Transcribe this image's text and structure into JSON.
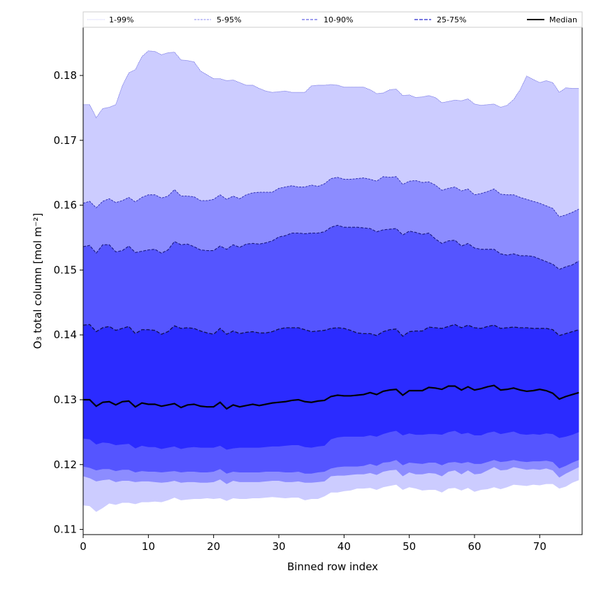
{
  "chart_data": {
    "type": "area",
    "title": "",
    "xlabel": "Binned row index",
    "ylabel": "O₃ total column [mol m⁻²]",
    "xlim": [
      0,
      76
    ],
    "ylim": [
      0.109,
      0.1875
    ],
    "x_ticks": [
      0,
      10,
      20,
      30,
      40,
      50,
      60,
      70
    ],
    "x_tick_labels": [
      "0",
      "10",
      "20",
      "30",
      "40",
      "50",
      "60",
      "70"
    ],
    "y_ticks": [
      0.11,
      0.12,
      0.13,
      0.14,
      0.15,
      0.16,
      0.17,
      0.18
    ],
    "y_tick_labels": [
      "0.11",
      "0.12",
      "0.13",
      "0.14",
      "0.15",
      "0.16",
      "0.17",
      "0.18"
    ],
    "grid": false,
    "legend_position": "top",
    "legend": [
      {
        "label": "1-99%",
        "color": "#c8c8f8",
        "style": "dotted"
      },
      {
        "label": "5-95%",
        "color": "#8888f0",
        "style": "dashed"
      },
      {
        "label": "10-90%",
        "color": "#6666e6",
        "style": "dashed"
      },
      {
        "label": "25-75%",
        "color": "#4a4ad6",
        "style": "dashed"
      },
      {
        "label": "Median",
        "color": "#000000",
        "style": "solid"
      }
    ],
    "band_colors": {
      "p1_99": "#ccccff",
      "p5_95": "#8c8cff",
      "p10_90": "#5555ff",
      "p25_75": "#2b2bff"
    },
    "edge_colors": {
      "p99": "#4d4dd9",
      "p95": "#2b2bb0",
      "p90": "#1a1a80",
      "p75": "#10104a"
    },
    "x": [
      0,
      1,
      2,
      3,
      4,
      5,
      6,
      7,
      8,
      9,
      10,
      11,
      12,
      13,
      14,
      15,
      16,
      17,
      18,
      19,
      20,
      21,
      22,
      23,
      24,
      25,
      26,
      27,
      28,
      29,
      30,
      31,
      32,
      33,
      34,
      35,
      36,
      37,
      38,
      39,
      40,
      41,
      42,
      43,
      44,
      45,
      46,
      47,
      48,
      49,
      50,
      51,
      52,
      53,
      54,
      55,
      56,
      57,
      58,
      59,
      60,
      61,
      62,
      63,
      64,
      65,
      66,
      67,
      68,
      69,
      70,
      71,
      72,
      73,
      74,
      75,
      76
    ],
    "series": [
      {
        "name": "p99",
        "values": [
          0.1755,
          0.1755,
          0.1735,
          0.1749,
          0.1751,
          0.1755,
          0.1784,
          0.1804,
          0.1809,
          0.1829,
          0.1838,
          0.1837,
          0.1832,
          0.1835,
          0.1836,
          0.1824,
          0.1823,
          0.1821,
          0.1807,
          0.1801,
          0.1795,
          0.1795,
          0.1792,
          0.1793,
          0.1789,
          0.1785,
          0.1785,
          0.178,
          0.1776,
          0.1774,
          0.1775,
          0.1776,
          0.1774,
          0.1774,
          0.1774,
          0.1784,
          0.1785,
          0.1785,
          0.1786,
          0.1785,
          0.1782,
          0.1782,
          0.1782,
          0.1782,
          0.1778,
          0.1772,
          0.1773,
          0.1778,
          0.1779,
          0.1769,
          0.177,
          0.1766,
          0.1767,
          0.1769,
          0.1766,
          0.1758,
          0.176,
          0.1762,
          0.1761,
          0.1764,
          0.1756,
          0.1754,
          0.1755,
          0.1756,
          0.1751,
          0.1754,
          0.1763,
          0.1778,
          0.1799,
          0.1794,
          0.1789,
          0.1792,
          0.1789,
          0.1774,
          0.1781,
          0.178,
          0.178
        ]
      },
      {
        "name": "p95",
        "values": [
          0.1603,
          0.1606,
          0.1596,
          0.1606,
          0.161,
          0.1604,
          0.1607,
          0.1612,
          0.1605,
          0.1612,
          0.1616,
          0.1616,
          0.1611,
          0.1614,
          0.1624,
          0.1614,
          0.1614,
          0.1613,
          0.1607,
          0.1607,
          0.1609,
          0.1616,
          0.1609,
          0.1614,
          0.161,
          0.1616,
          0.1619,
          0.162,
          0.162,
          0.162,
          0.1626,
          0.1628,
          0.163,
          0.1628,
          0.1628,
          0.1631,
          0.1629,
          0.1633,
          0.1641,
          0.1643,
          0.164,
          0.164,
          0.1641,
          0.1642,
          0.164,
          0.1637,
          0.1644,
          0.1643,
          0.1644,
          0.1632,
          0.1637,
          0.1638,
          0.1635,
          0.1636,
          0.1631,
          0.1623,
          0.1626,
          0.1628,
          0.1622,
          0.1625,
          0.1616,
          0.1618,
          0.1621,
          0.1625,
          0.1617,
          0.1616,
          0.1616,
          0.1612,
          0.1609,
          0.1606,
          0.1603,
          0.1599,
          0.1595,
          0.1582,
          0.1585,
          0.1589,
          0.1594
        ]
      },
      {
        "name": "p90",
        "values": [
          0.1536,
          0.1538,
          0.1526,
          0.1539,
          0.1539,
          0.1528,
          0.153,
          0.1537,
          0.1527,
          0.1529,
          0.1531,
          0.1532,
          0.1526,
          0.1531,
          0.1544,
          0.1539,
          0.154,
          0.1536,
          0.1531,
          0.153,
          0.153,
          0.1537,
          0.1532,
          0.1539,
          0.1535,
          0.154,
          0.1541,
          0.154,
          0.1542,
          0.1545,
          0.1551,
          0.1553,
          0.1557,
          0.1557,
          0.1556,
          0.1557,
          0.1557,
          0.1559,
          0.1566,
          0.1569,
          0.1566,
          0.1566,
          0.1566,
          0.1565,
          0.1564,
          0.1559,
          0.1562,
          0.1563,
          0.1564,
          0.1554,
          0.156,
          0.1558,
          0.1555,
          0.1557,
          0.1548,
          0.1541,
          0.1545,
          0.1546,
          0.1537,
          0.1541,
          0.1534,
          0.1532,
          0.1532,
          0.1532,
          0.1525,
          0.1523,
          0.1525,
          0.1522,
          0.1522,
          0.1521,
          0.1517,
          0.1513,
          0.1509,
          0.1501,
          0.1505,
          0.1508,
          0.1514
        ]
      },
      {
        "name": "p75",
        "values": [
          0.1415,
          0.1416,
          0.1405,
          0.1411,
          0.1413,
          0.1407,
          0.141,
          0.1413,
          0.1402,
          0.1408,
          0.1408,
          0.1407,
          0.1401,
          0.1405,
          0.1414,
          0.141,
          0.1411,
          0.141,
          0.1406,
          0.1403,
          0.1401,
          0.141,
          0.1401,
          0.1406,
          0.1402,
          0.1404,
          0.1405,
          0.1403,
          0.1403,
          0.1405,
          0.1409,
          0.1411,
          0.1411,
          0.1411,
          0.1408,
          0.1405,
          0.1406,
          0.1407,
          0.141,
          0.1411,
          0.141,
          0.1407,
          0.1403,
          0.1402,
          0.1402,
          0.1399,
          0.1405,
          0.1408,
          0.1409,
          0.1398,
          0.1405,
          0.1406,
          0.1406,
          0.1412,
          0.1411,
          0.141,
          0.1413,
          0.1416,
          0.1411,
          0.1415,
          0.1411,
          0.141,
          0.1413,
          0.1415,
          0.141,
          0.1411,
          0.1412,
          0.1411,
          0.1411,
          0.141,
          0.141,
          0.141,
          0.1408,
          0.1399,
          0.1402,
          0.1405,
          0.1408
        ]
      },
      {
        "name": "Median",
        "values": [
          0.13,
          0.13,
          0.129,
          0.1296,
          0.1297,
          0.1292,
          0.1297,
          0.1298,
          0.1289,
          0.1295,
          0.1293,
          0.1293,
          0.129,
          0.1292,
          0.1294,
          0.1288,
          0.1292,
          0.1293,
          0.129,
          0.1289,
          0.1289,
          0.1296,
          0.1286,
          0.1292,
          0.1289,
          0.1291,
          0.1293,
          0.1291,
          0.1293,
          0.1295,
          0.1296,
          0.1297,
          0.1299,
          0.13,
          0.1297,
          0.1296,
          0.1298,
          0.1299,
          0.1305,
          0.1307,
          0.1306,
          0.1306,
          0.1307,
          0.1308,
          0.1311,
          0.1308,
          0.1313,
          0.1315,
          0.1316,
          0.1307,
          0.1314,
          0.1314,
          0.1314,
          0.1319,
          0.1318,
          0.1316,
          0.1321,
          0.1321,
          0.1315,
          0.132,
          0.1315,
          0.1317,
          0.132,
          0.1322,
          0.1315,
          0.1316,
          0.1318,
          0.1315,
          0.1313,
          0.1314,
          0.1316,
          0.1314,
          0.131,
          0.1301,
          0.1305,
          0.1308,
          0.1311
        ]
      },
      {
        "name": "p25",
        "values": [
          0.124,
          0.1239,
          0.1231,
          0.1234,
          0.1233,
          0.123,
          0.1231,
          0.1232,
          0.1225,
          0.1229,
          0.1227,
          0.1227,
          0.1224,
          0.1226,
          0.1228,
          0.1224,
          0.1226,
          0.1227,
          0.1226,
          0.1226,
          0.1226,
          0.1229,
          0.1223,
          0.1225,
          0.1226,
          0.1226,
          0.1226,
          0.1226,
          0.1227,
          0.1228,
          0.1228,
          0.1229,
          0.123,
          0.123,
          0.1227,
          0.1226,
          0.1228,
          0.1229,
          0.1239,
          0.1242,
          0.1243,
          0.1243,
          0.1243,
          0.1243,
          0.1245,
          0.1243,
          0.1247,
          0.125,
          0.1252,
          0.1245,
          0.1248,
          0.1246,
          0.1246,
          0.1247,
          0.1247,
          0.1246,
          0.125,
          0.1252,
          0.1247,
          0.1249,
          0.1245,
          0.1245,
          0.1249,
          0.1251,
          0.1247,
          0.1249,
          0.1251,
          0.1247,
          0.1246,
          0.1247,
          0.1246,
          0.1248,
          0.1247,
          0.1241,
          0.1243,
          0.1246,
          0.125
        ]
      },
      {
        "name": "p10",
        "values": [
          0.1197,
          0.1195,
          0.1191,
          0.1193,
          0.1193,
          0.119,
          0.1192,
          0.1192,
          0.1188,
          0.119,
          0.1189,
          0.1189,
          0.1188,
          0.1189,
          0.119,
          0.1188,
          0.1189,
          0.1189,
          0.1188,
          0.1188,
          0.1189,
          0.1193,
          0.1186,
          0.1189,
          0.1188,
          0.1188,
          0.1188,
          0.1188,
          0.1189,
          0.1189,
          0.1189,
          0.1188,
          0.1188,
          0.1189,
          0.1186,
          0.1186,
          0.1188,
          0.1189,
          0.1194,
          0.1196,
          0.1197,
          0.1197,
          0.1197,
          0.1198,
          0.1201,
          0.1198,
          0.1203,
          0.1204,
          0.1207,
          0.1199,
          0.1203,
          0.1202,
          0.1201,
          0.1203,
          0.1203,
          0.1199,
          0.1203,
          0.1204,
          0.1202,
          0.1204,
          0.1201,
          0.1201,
          0.1204,
          0.1207,
          0.1204,
          0.1205,
          0.1207,
          0.1205,
          0.1204,
          0.1205,
          0.1205,
          0.1206,
          0.1204,
          0.1194,
          0.1198,
          0.1203,
          0.1207
        ]
      },
      {
        "name": "p5",
        "values": [
          0.1182,
          0.1179,
          0.1174,
          0.1176,
          0.1177,
          0.1173,
          0.1175,
          0.1175,
          0.1173,
          0.1174,
          0.1174,
          0.1173,
          0.1172,
          0.1173,
          0.1175,
          0.1172,
          0.1173,
          0.1173,
          0.1172,
          0.1172,
          0.1173,
          0.1177,
          0.117,
          0.1175,
          0.1173,
          0.1173,
          0.1173,
          0.1173,
          0.1174,
          0.1175,
          0.1175,
          0.1173,
          0.1173,
          0.1174,
          0.1172,
          0.1172,
          0.1173,
          0.1174,
          0.1182,
          0.1183,
          0.1183,
          0.1184,
          0.1185,
          0.1185,
          0.1187,
          0.1184,
          0.1189,
          0.1191,
          0.1192,
          0.1182,
          0.1188,
          0.1185,
          0.1185,
          0.1187,
          0.1186,
          0.1182,
          0.1189,
          0.1191,
          0.1185,
          0.1191,
          0.1185,
          0.1186,
          0.1191,
          0.1196,
          0.1191,
          0.1192,
          0.1196,
          0.1194,
          0.1192,
          0.1193,
          0.1192,
          0.1194,
          0.1191,
          0.118,
          0.1186,
          0.1191,
          0.1196
        ]
      },
      {
        "name": "p1",
        "values": [
          0.1137,
          0.1136,
          0.1127,
          0.1133,
          0.114,
          0.1138,
          0.1141,
          0.1141,
          0.1139,
          0.1142,
          0.1142,
          0.1143,
          0.1142,
          0.1145,
          0.1149,
          0.1145,
          0.1146,
          0.1147,
          0.1147,
          0.1148,
          0.1147,
          0.1148,
          0.1144,
          0.1148,
          0.1147,
          0.1147,
          0.1148,
          0.1148,
          0.1149,
          0.115,
          0.1149,
          0.1148,
          0.1149,
          0.1149,
          0.1145,
          0.1147,
          0.1147,
          0.1151,
          0.1157,
          0.1157,
          0.1159,
          0.116,
          0.1163,
          0.1163,
          0.1164,
          0.1161,
          0.1165,
          0.1167,
          0.1169,
          0.1161,
          0.1165,
          0.1163,
          0.116,
          0.1161,
          0.1161,
          0.1157,
          0.1163,
          0.1164,
          0.116,
          0.1164,
          0.1158,
          0.1161,
          0.1162,
          0.1165,
          0.1162,
          0.1165,
          0.1169,
          0.1168,
          0.1167,
          0.1169,
          0.1168,
          0.117,
          0.117,
          0.1163,
          0.1166,
          0.1172,
          0.1176
        ]
      }
    ]
  }
}
